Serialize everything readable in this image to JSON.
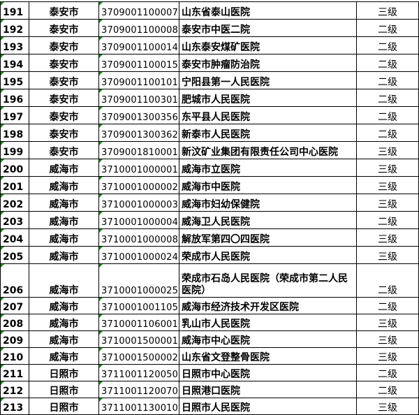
{
  "table": {
    "rows": [
      {
        "no": "191",
        "city": "泰安市",
        "code": "3709001100007",
        "name": "山东省泰山医院",
        "level": "三级"
      },
      {
        "no": "192",
        "city": "泰安市",
        "code": "3709001100008",
        "name": "泰安市中医二院",
        "level": "二级"
      },
      {
        "no": "193",
        "city": "泰安市",
        "code": "3709001100014",
        "name": "山东泰安煤矿医院",
        "level": "二级"
      },
      {
        "no": "194",
        "city": "泰安市",
        "code": "3709001100015",
        "name": "泰安市肿瘤防治院",
        "level": "二级"
      },
      {
        "no": "195",
        "city": "泰安市",
        "code": "3709001100101",
        "name": "宁阳县第一人民医院",
        "level": "二级"
      },
      {
        "no": "196",
        "city": "泰安市",
        "code": "3709001100301",
        "name": "肥城市人民医院",
        "level": "二级"
      },
      {
        "no": "197",
        "city": "泰安市",
        "code": "3709001300356",
        "name": "东平县人民医院",
        "level": "二级"
      },
      {
        "no": "198",
        "city": "泰安市",
        "code": "3709001300362",
        "name": "新泰市人民医院",
        "level": "二级"
      },
      {
        "no": "199",
        "city": "泰安市",
        "code": "3709001810001",
        "name": "新汶矿业集团有限责任公司中心医院",
        "level": "三级"
      },
      {
        "no": "200",
        "city": "威海市",
        "code": "3710001000001",
        "name": "威海市立医院",
        "level": "三级"
      },
      {
        "no": "201",
        "city": "威海市",
        "code": "3710001000002",
        "name": "威海市中医院",
        "level": "三级"
      },
      {
        "no": "202",
        "city": "威海市",
        "code": "3710001000003",
        "name": "威海市妇幼保健院",
        "level": "三级"
      },
      {
        "no": "203",
        "city": "威海市",
        "code": "3710001000004",
        "name": "威海卫人民医院",
        "level": "二级"
      },
      {
        "no": "204",
        "city": "威海市",
        "code": "3710001000008",
        "name": "解放军第四〇四医院",
        "level": "三级"
      },
      {
        "no": "205",
        "city": "威海市",
        "code": "3710001000024",
        "name": "荣成市人民医院",
        "level": "三级"
      },
      {
        "no": "206",
        "city": "威海市",
        "code": "3710001000025",
        "name": "荣成市石岛人民医院（荣成市第二人民医院）",
        "level": "二级"
      },
      {
        "no": "207",
        "city": "威海市",
        "code": "3710001001105",
        "name": "威海市经济技术开发区医院",
        "level": "二级"
      },
      {
        "no": "208",
        "city": "威海市",
        "code": "3710001106001",
        "name": "乳山市人民医院",
        "level": "三级"
      },
      {
        "no": "209",
        "city": "威海市",
        "code": "3710001500001",
        "name": "威海市中心医院",
        "level": "三级"
      },
      {
        "no": "210",
        "city": "威海市",
        "code": "3710001500002",
        "name": "山东省文登整骨医院",
        "level": "三级"
      },
      {
        "no": "211",
        "city": "日照市",
        "code": "3711001120050",
        "name": "日照市中心医院",
        "level": "二级"
      },
      {
        "no": "212",
        "city": "日照市",
        "code": "3711001120070",
        "name": "日照港口医院",
        "level": "二级"
      },
      {
        "no": "213",
        "city": "日照市",
        "code": "3711001130010",
        "name": "日照市人民医院",
        "level": "三级"
      }
    ]
  },
  "colors": {
    "indicator": "#1e8a1e",
    "border": "#000000"
  }
}
